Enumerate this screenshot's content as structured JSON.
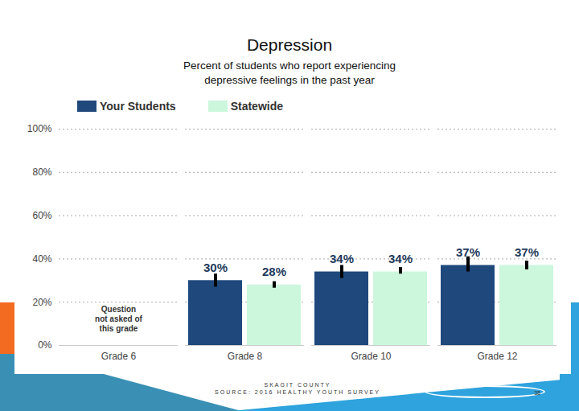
{
  "chart_data": {
    "type": "bar",
    "title": "Depression",
    "subtitle": "Percent of students who report experiencing depressive feelings in the past year",
    "categories": [
      "Grade 6",
      "Grade 8",
      "Grade 10",
      "Grade 12"
    ],
    "series": [
      {
        "name": "Your Students",
        "color": "#1f487c",
        "values": [
          null,
          30,
          34,
          37
        ],
        "value_labels": [
          null,
          "30%",
          "34%",
          "37%"
        ],
        "error_low": [
          null,
          27,
          31,
          34
        ],
        "error_high": [
          null,
          33,
          37,
          41
        ]
      },
      {
        "name": "Statewide",
        "color": "#ccf7dd",
        "values": [
          null,
          28,
          34,
          37
        ],
        "value_labels": [
          null,
          "28%",
          "34%",
          "37%"
        ],
        "error_low": [
          null,
          26.5,
          33,
          35
        ],
        "error_high": [
          null,
          29.5,
          36,
          39
        ]
      }
    ],
    "ylim": [
      0,
      100
    ],
    "yticks": [
      {
        "value": 0,
        "label": "0%"
      },
      {
        "value": 20,
        "label": "20%"
      },
      {
        "value": 40,
        "label": "40%"
      },
      {
        "value": 60,
        "label": "60%"
      },
      {
        "value": 80,
        "label": "80%"
      },
      {
        "value": 100,
        "label": "100%"
      }
    ],
    "grid": true,
    "data_labels": true,
    "legend": "top-left",
    "annotations": [
      {
        "text": "Question not asked of this grade",
        "category": "Grade 6"
      }
    ],
    "caption": [
      "SKAGIT COUNTY",
      "SOURCE: 2016 HEALTHY YOUTH SURVEY"
    ],
    "page_number": "38"
  }
}
